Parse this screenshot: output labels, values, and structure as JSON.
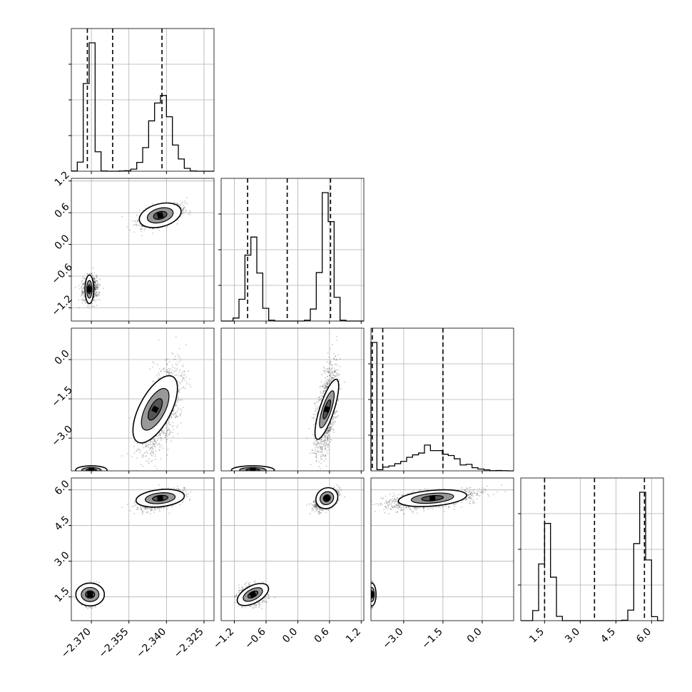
{
  "chart_data": {
    "type": "scatter",
    "variables": [
      {
        "range": [
          -2.378,
          -2.321
        ],
        "ticks": [
          -2.37,
          -2.355,
          -2.34,
          -2.325
        ],
        "tick_labels": [
          "−2.370",
          "−2.355",
          "−2.340",
          "−2.325"
        ],
        "quantiles": [
          -2.3716,
          -2.3615,
          -2.3418
        ],
        "modes": [
          {
            "center": -2.3705,
            "sd": 0.0015,
            "weight": 0.42
          },
          {
            "center": -2.342,
            "sd": 0.004,
            "weight": 0.58
          }
        ]
      },
      {
        "range": [
          -1.45,
          1.25
        ],
        "ticks": [
          -1.2,
          -0.6,
          0.0,
          0.6,
          1.2
        ],
        "tick_labels": [
          "−1.2",
          "−0.6",
          "0.0",
          "0.6",
          "1.2"
        ],
        "quantiles": [
          -0.95,
          -0.2,
          0.62
        ],
        "modes": [
          {
            "center": -0.85,
            "sd": 0.12,
            "weight": 0.45
          },
          {
            "center": 0.55,
            "sd": 0.1,
            "weight": 0.55
          }
        ]
      },
      {
        "range": [
          -4.25,
          1.2
        ],
        "ticks": [
          -3.0,
          -1.5,
          0.0
        ],
        "tick_labels": [
          "−3.0",
          "−1.5",
          "0.0"
        ],
        "quantiles": [
          -4.2,
          -3.8,
          -1.5
        ],
        "modes": [
          {
            "center": -4.22,
            "sd": 0.03,
            "weight": 0.42
          },
          {
            "center": -1.9,
            "sd": 0.85,
            "weight": 0.58
          }
        ]
      },
      {
        "range": [
          0.5,
          6.5
        ],
        "ticks": [
          1.5,
          3.0,
          4.5,
          6.0
        ],
        "tick_labels": [
          "1.5",
          "3.0",
          "4.5",
          "6.0"
        ],
        "quantiles": [
          1.5,
          3.6,
          5.7
        ],
        "modes": [
          {
            "center": 1.6,
            "sd": 0.2,
            "weight": 0.45
          },
          {
            "center": 5.6,
            "sd": 0.2,
            "weight": 0.55
          }
        ]
      }
    ],
    "grid": true,
    "xlabel": "",
    "ylabel": "",
    "title": ""
  }
}
